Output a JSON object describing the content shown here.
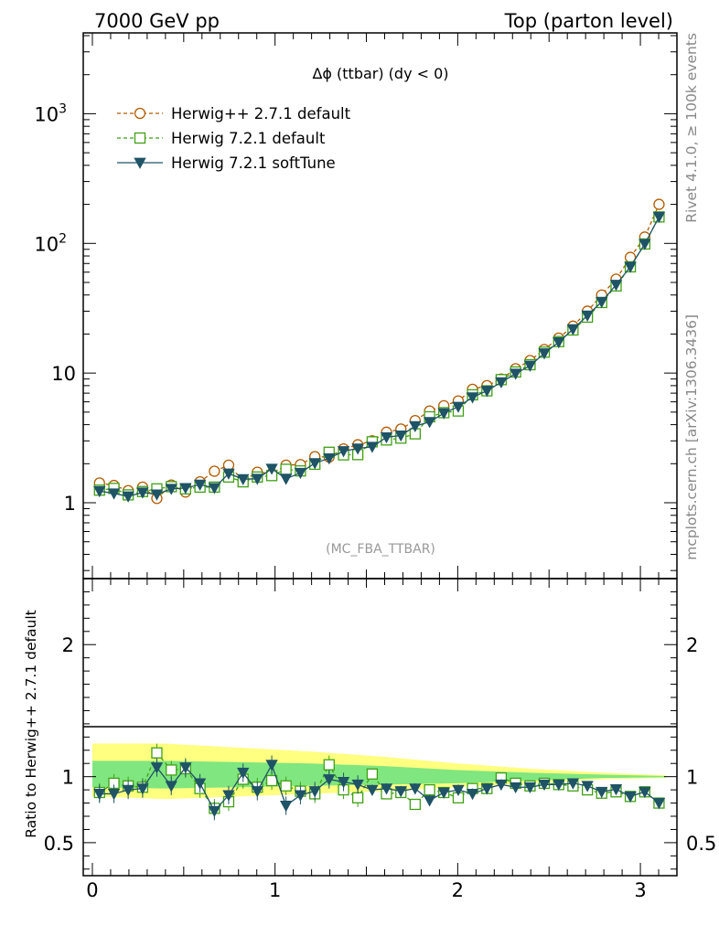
{
  "header": {
    "left": "7000 GeV pp",
    "right": "Top (parton level)"
  },
  "side_labels": {
    "rivet": "Rivet 4.1.0, ≥ 100k events",
    "mcplots": "mcplots.cern.ch [arXiv:1306.3436]"
  },
  "colors": {
    "herwigpp": "#b35a00",
    "herwig721": "#3fa013",
    "softtune": "#1f5366",
    "band_yellow": "#ffff80",
    "band_green": "#80e680"
  },
  "chart_data": [
    {
      "type": "line",
      "title": "Δϕ (ttbar) (dy < 0)",
      "analysis_tag": "(MC_FBA_TTBAR)",
      "xlabel": "",
      "ylabel": "",
      "yscale": "log",
      "xlim": [
        -0.05,
        3.2
      ],
      "ylim": [
        0.26,
        4200
      ],
      "y_tick_labels": [
        "1",
        "10",
        "10^2",
        "10^3"
      ],
      "x": [
        0.039,
        0.118,
        0.196,
        0.275,
        0.353,
        0.432,
        0.51,
        0.589,
        0.668,
        0.746,
        0.825,
        0.903,
        0.982,
        1.06,
        1.139,
        1.218,
        1.296,
        1.375,
        1.453,
        1.532,
        1.61,
        1.689,
        1.767,
        1.846,
        1.924,
        2.003,
        2.081,
        2.16,
        2.238,
        2.317,
        2.396,
        2.474,
        2.553,
        2.631,
        2.71,
        2.788,
        2.867,
        2.945,
        3.024,
        3.102
      ],
      "series": [
        {
          "name": "Herwig++ 2.7.1 default",
          "marker": "open-circle",
          "linestyle": "dashed",
          "values": [
            1.42,
            1.36,
            1.24,
            1.32,
            1.08,
            1.37,
            1.21,
            1.45,
            1.75,
            1.95,
            1.48,
            1.72,
            1.68,
            1.95,
            1.97,
            2.27,
            2.25,
            2.6,
            2.8,
            3.0,
            3.5,
            3.7,
            4.3,
            5.1,
            5.6,
            6.1,
            7.5,
            8.0,
            9.0,
            10.8,
            12.5,
            15.2,
            18.6,
            23.0,
            30.0,
            40.0,
            53.0,
            78.0,
            112.0,
            200.0
          ]
        },
        {
          "name": "Herwig 7.2.1 default",
          "marker": "open-square",
          "linestyle": "dashed",
          "values": [
            1.25,
            1.29,
            1.15,
            1.22,
            1.28,
            1.33,
            1.28,
            1.32,
            1.32,
            1.58,
            1.45,
            1.58,
            1.62,
            1.81,
            1.76,
            1.98,
            2.45,
            2.34,
            2.35,
            2.95,
            3.05,
            3.15,
            3.4,
            4.6,
            4.95,
            5.1,
            6.8,
            7.3,
            8.9,
            10.2,
            11.6,
            14.5,
            17.5,
            21.5,
            27.0,
            35.0,
            47.0,
            66.0,
            99.0,
            160.0
          ]
        },
        {
          "name": "Herwig 7.2.1 softTune",
          "marker": "filled-triangle-down",
          "linestyle": "solid",
          "values": [
            1.23,
            1.18,
            1.12,
            1.2,
            1.16,
            1.28,
            1.3,
            1.38,
            1.3,
            1.68,
            1.52,
            1.53,
            1.83,
            1.53,
            1.7,
            2.02,
            2.2,
            2.5,
            2.62,
            2.7,
            3.2,
            3.3,
            3.9,
            4.2,
            4.9,
            5.5,
            6.5,
            7.3,
            8.5,
            9.9,
            11.4,
            14.2,
            17.3,
            21.8,
            27.8,
            35.4,
            48.0,
            66.0,
            99.0,
            160.0
          ]
        }
      ]
    },
    {
      "type": "line",
      "title": "",
      "xlabel": "",
      "ylabel": "Ratio to Herwig++ 2.7.1 default",
      "xlim": [
        -0.05,
        3.2
      ],
      "ylim": [
        0.25,
        2.5
      ],
      "x_tick_labels": [
        "0",
        "1",
        "2",
        "3"
      ],
      "y_tick_labels": [
        "0.5",
        "1",
        "2"
      ],
      "reference": 1.0,
      "band_yellow": {
        "x": [
          0.0,
          0.4,
          0.8,
          1.2,
          1.6,
          2.0,
          2.4,
          2.8,
          3.14
        ],
        "lo": [
          0.85,
          0.83,
          0.85,
          0.87,
          0.89,
          0.92,
          0.95,
          0.98,
          0.99
        ],
        "hi": [
          1.25,
          1.25,
          1.22,
          1.19,
          1.15,
          1.1,
          1.06,
          1.03,
          1.01
        ]
      },
      "band_green": {
        "x": [
          0.0,
          0.4,
          0.8,
          1.2,
          1.6,
          2.0,
          2.4,
          2.8,
          3.14
        ],
        "lo": [
          0.92,
          0.91,
          0.92,
          0.93,
          0.94,
          0.95,
          0.97,
          0.99,
          0.995
        ],
        "hi": [
          1.12,
          1.12,
          1.11,
          1.1,
          1.08,
          1.05,
          1.03,
          1.015,
          1.005
        ]
      },
      "series": [
        {
          "name": "Herwig 7.2.1 default",
          "marker": "open-square",
          "linestyle": "dashed",
          "values": [
            0.88,
            0.95,
            0.93,
            0.92,
            1.18,
            1.05,
            1.06,
            0.91,
            0.76,
            0.81,
            0.98,
            0.92,
            0.97,
            0.93,
            0.89,
            0.87,
            1.09,
            0.9,
            0.84,
            1.02,
            0.87,
            0.88,
            0.79,
            0.9,
            0.88,
            0.84,
            0.91,
            0.91,
            0.99,
            0.95,
            0.93,
            0.95,
            0.94,
            0.93,
            0.9,
            0.875,
            0.885,
            0.85,
            0.885,
            0.8
          ]
        },
        {
          "name": "Herwig 7.2.1 softTune",
          "marker": "filled-triangle-down",
          "linestyle": "solid",
          "values": [
            0.87,
            0.87,
            0.9,
            0.91,
            1.07,
            0.93,
            1.07,
            0.95,
            0.74,
            0.86,
            1.03,
            0.89,
            1.09,
            0.78,
            0.86,
            0.89,
            0.98,
            0.96,
            0.94,
            0.9,
            0.91,
            0.89,
            0.91,
            0.82,
            0.88,
            0.9,
            0.87,
            0.91,
            0.94,
            0.92,
            0.92,
            0.94,
            0.94,
            0.95,
            0.93,
            0.885,
            0.905,
            0.85,
            0.885,
            0.8
          ]
        }
      ]
    }
  ]
}
